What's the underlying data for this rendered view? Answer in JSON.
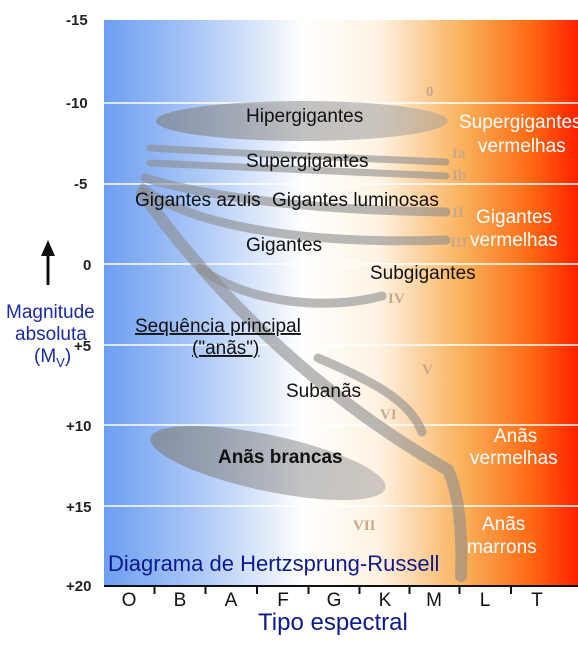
{
  "title": "Diagrama de Hertzsprung-Russell",
  "x_axis": {
    "label": "Tipo espectral",
    "ticks": [
      "O",
      "B",
      "A",
      "F",
      "G",
      "K",
      "M",
      "L",
      "T"
    ]
  },
  "y_axis": {
    "label_line1": "Magnitude",
    "label_line2": "absoluta",
    "label_line3": "(M",
    "label_sub": "V",
    "label_close": ")",
    "arrow": "up-arrow",
    "ticks": [
      "-15",
      "-10",
      "-5",
      "0",
      "+5",
      "+10",
      "+15",
      "+20"
    ]
  },
  "regions": {
    "hypergiants": "Hipergigantes",
    "supergiants": "Supergigantes",
    "blue_giants": "Gigantes azuis",
    "bright_giants": "Gigantes luminosas",
    "giants": "Gigantes",
    "subgiants": "Subgigantes",
    "main_sequence_1": "Sequência principal",
    "main_sequence_2": "(\"anãs\")",
    "subdwarfs": "Subanãs",
    "white_dwarfs": "Anãs brancas"
  },
  "edge_labels": {
    "red_supergiants_1": "Supergigantes",
    "red_supergiants_2": "vermelhas",
    "red_giants_1": "Gigantes",
    "red_giants_2": "vermelhas",
    "red_dwarfs_1": "Anãs",
    "red_dwarfs_2": "vermelhas",
    "brown_dwarfs_1": "Anãs",
    "brown_dwarfs_2": "marrons"
  },
  "luminosity_classes": [
    "0",
    "Ia",
    "Ib",
    "II",
    "III",
    "IV",
    "V",
    "VI",
    "VII"
  ],
  "colors": {
    "blue": "#6d9ef0",
    "white": "#ffffff",
    "orange": "#f9b05a",
    "red": "#ff2a00",
    "band_gray": "#8c8c8c",
    "title_blue": "#0c1a8c"
  }
}
